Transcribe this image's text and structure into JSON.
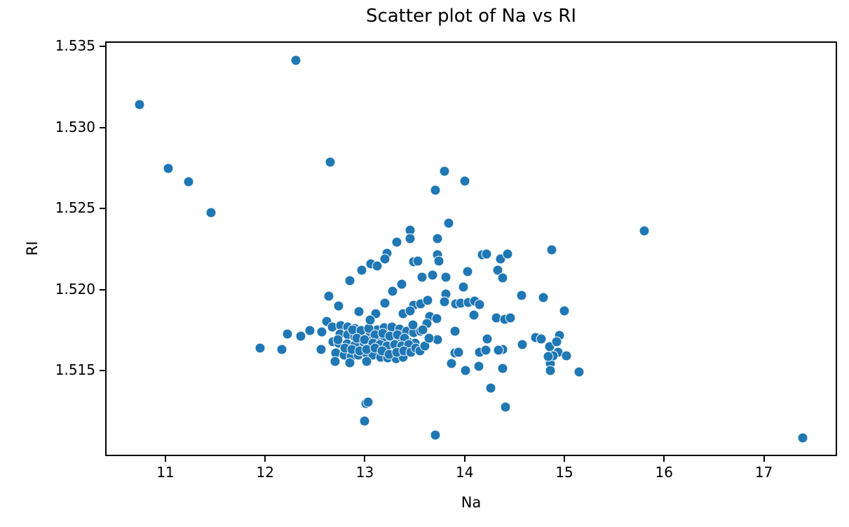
{
  "figure": {
    "title": "Scatter plot of Na vs RI",
    "xlabel": "Na",
    "ylabel": "RI"
  },
  "chart_data": {
    "type": "scatter",
    "title": "Scatter plot of Na vs RI",
    "xlabel": "Na",
    "ylabel": "RI",
    "xlim": [
      10.41,
      17.72
    ],
    "ylim": [
      1.50982,
      1.53523
    ],
    "grid": false,
    "legend": "none",
    "marker_color": "#1f77b4",
    "marker_edge_color": "#ffffff",
    "x_ticks": [
      11,
      12,
      13,
      14,
      15,
      16,
      17
    ],
    "x_tick_labels": [
      "11",
      "12",
      "13",
      "14",
      "15",
      "16",
      "17"
    ],
    "y_ticks": [
      1.515,
      1.52,
      1.525,
      1.53,
      1.535
    ],
    "y_tick_labels": [
      "1.515",
      "1.520",
      "1.525",
      "1.530",
      "1.535"
    ],
    "points": [
      [
        12.31,
        1.53415
      ],
      [
        10.74,
        1.53143
      ],
      [
        11.03,
        1.52747
      ],
      [
        11.23,
        1.52667
      ],
      [
        11.46,
        1.52474
      ],
      [
        12.65,
        1.52787
      ],
      [
        13.8,
        1.52732
      ],
      [
        14.0,
        1.52671
      ],
      [
        13.71,
        1.52615
      ],
      [
        13.84,
        1.52409
      ],
      [
        13.45,
        1.52367
      ],
      [
        13.45,
        1.52315
      ],
      [
        13.32,
        1.52292
      ],
      [
        13.73,
        1.52316
      ],
      [
        13.22,
        1.52226
      ],
      [
        13.2,
        1.5219
      ],
      [
        13.06,
        1.5216
      ],
      [
        13.12,
        1.52146
      ],
      [
        12.97,
        1.52122
      ],
      [
        13.49,
        1.52171
      ],
      [
        13.53,
        1.52177
      ],
      [
        13.73,
        1.52214
      ],
      [
        13.74,
        1.52175
      ],
      [
        14.18,
        1.52216
      ],
      [
        14.22,
        1.52221
      ],
      [
        14.36,
        1.52188
      ],
      [
        14.43,
        1.52219
      ],
      [
        14.87,
        1.52245
      ],
      [
        14.03,
        1.52113
      ],
      [
        14.33,
        1.5212
      ],
      [
        14.38,
        1.52071
      ],
      [
        13.57,
        1.52077
      ],
      [
        13.68,
        1.52091
      ],
      [
        13.81,
        1.52077
      ],
      [
        12.85,
        1.52054
      ],
      [
        12.64,
        1.51959
      ],
      [
        12.74,
        1.51899
      ],
      [
        12.22,
        1.51728
      ],
      [
        12.36,
        1.51713
      ],
      [
        12.45,
        1.51749
      ],
      [
        11.95,
        1.51641
      ],
      [
        12.17,
        1.51632
      ],
      [
        12.56,
        1.5163
      ],
      [
        12.62,
        1.51803
      ],
      [
        12.68,
        1.5168
      ],
      [
        13.37,
        1.52035
      ],
      [
        13.28,
        1.51992
      ],
      [
        13.2,
        1.51916
      ],
      [
        13.49,
        1.51904
      ],
      [
        13.56,
        1.51911
      ],
      [
        12.94,
        1.51866
      ],
      [
        13.11,
        1.51851
      ],
      [
        13.38,
        1.51853
      ],
      [
        13.45,
        1.51869
      ],
      [
        12.57,
        1.51741
      ],
      [
        12.67,
        1.51768
      ],
      [
        12.76,
        1.5178
      ],
      [
        12.83,
        1.51771
      ],
      [
        12.9,
        1.5176
      ],
      [
        12.75,
        1.51726
      ],
      [
        12.83,
        1.51721
      ],
      [
        12.9,
        1.51709
      ],
      [
        12.98,
        1.51723
      ],
      [
        13.05,
        1.51735
      ],
      [
        13.12,
        1.51752
      ],
      [
        13.19,
        1.51767
      ],
      [
        13.27,
        1.51772
      ],
      [
        13.35,
        1.51758
      ],
      [
        13.42,
        1.51745
      ],
      [
        13.49,
        1.51735
      ],
      [
        13.56,
        1.51745
      ],
      [
        12.98,
        1.51677
      ],
      [
        13.05,
        1.51683
      ],
      [
        13.13,
        1.51692
      ],
      [
        13.2,
        1.51697
      ],
      [
        13.28,
        1.51692
      ],
      [
        13.35,
        1.51683
      ],
      [
        13.43,
        1.51677
      ],
      [
        13.5,
        1.51669
      ],
      [
        12.74,
        1.51671
      ],
      [
        12.82,
        1.51666
      ],
      [
        12.9,
        1.51657
      ],
      [
        12.71,
        1.51608
      ],
      [
        12.79,
        1.51597
      ],
      [
        12.86,
        1.51588
      ],
      [
        12.93,
        1.51597
      ],
      [
        13.01,
        1.51608
      ],
      [
        13.08,
        1.51597
      ],
      [
        13.16,
        1.51585
      ],
      [
        13.23,
        1.51579
      ],
      [
        13.31,
        1.51574
      ],
      [
        13.38,
        1.51583
      ],
      [
        12.7,
        1.51559
      ],
      [
        12.85,
        1.5155
      ],
      [
        13.02,
        1.51559
      ],
      [
        13.99,
        1.52015
      ],
      [
        13.81,
        1.51973
      ],
      [
        13.8,
        1.51926
      ],
      [
        13.63,
        1.51933
      ],
      [
        13.91,
        1.51911
      ],
      [
        13.96,
        1.51917
      ],
      [
        14.04,
        1.51922
      ],
      [
        14.1,
        1.51928
      ],
      [
        14.15,
        1.51907
      ],
      [
        14.09,
        1.51842
      ],
      [
        13.65,
        1.51836
      ],
      [
        13.72,
        1.51821
      ],
      [
        13.62,
        1.51791
      ],
      [
        14.32,
        1.51828
      ],
      [
        14.4,
        1.51818
      ],
      [
        14.46,
        1.51824
      ],
      [
        13.9,
        1.51745
      ],
      [
        13.73,
        1.51694
      ],
      [
        14.23,
        1.51698
      ],
      [
        14.38,
        1.51633
      ],
      [
        14.34,
        1.51626
      ],
      [
        14.58,
        1.51662
      ],
      [
        14.71,
        1.51706
      ],
      [
        14.77,
        1.51698
      ],
      [
        14.85,
        1.51648
      ],
      [
        13.9,
        1.51608
      ],
      [
        13.94,
        1.51615
      ],
      [
        14.15,
        1.51615
      ],
      [
        14.21,
        1.51625
      ],
      [
        13.87,
        1.51543
      ],
      [
        14.14,
        1.51528
      ],
      [
        14.01,
        1.515
      ],
      [
        14.38,
        1.51514
      ],
      [
        14.85,
        1.51557
      ],
      [
        14.86,
        1.51543
      ],
      [
        14.26,
        1.51394
      ],
      [
        14.57,
        1.51966
      ],
      [
        14.79,
        1.51953
      ],
      [
        13.01,
        1.51296
      ],
      [
        13.03,
        1.51305
      ],
      [
        13.0,
        1.5119
      ],
      [
        13.71,
        1.51103
      ],
      [
        14.41,
        1.51275
      ],
      [
        14.86,
        1.515
      ],
      [
        15.8,
        1.52361
      ],
      [
        15.0,
        1.51871
      ],
      [
        14.95,
        1.51717
      ],
      [
        14.92,
        1.5168
      ],
      [
        14.94,
        1.51615
      ],
      [
        14.89,
        1.51594
      ],
      [
        15.02,
        1.51594
      ],
      [
        14.84,
        1.51587
      ],
      [
        15.15,
        1.51493
      ],
      [
        17.39,
        1.51086
      ],
      [
        12.88,
        1.51752
      ],
      [
        12.96,
        1.51747
      ],
      [
        13.04,
        1.51762
      ],
      [
        13.1,
        1.51722
      ],
      [
        13.18,
        1.51732
      ],
      [
        13.25,
        1.51712
      ],
      [
        13.33,
        1.51722
      ],
      [
        13.4,
        1.51702
      ],
      [
        12.92,
        1.51702
      ],
      [
        13.0,
        1.51692
      ],
      [
        13.08,
        1.51672
      ],
      [
        13.15,
        1.51662
      ],
      [
        13.22,
        1.51652
      ],
      [
        13.3,
        1.51662
      ],
      [
        13.37,
        1.51652
      ],
      [
        13.44,
        1.51662
      ],
      [
        12.8,
        1.51642
      ],
      [
        12.87,
        1.51632
      ],
      [
        12.95,
        1.51622
      ],
      [
        13.02,
        1.51632
      ],
      [
        13.1,
        1.51642
      ],
      [
        13.17,
        1.51622
      ],
      [
        13.24,
        1.51602
      ],
      [
        13.32,
        1.51612
      ],
      [
        13.39,
        1.51622
      ],
      [
        13.46,
        1.51612
      ],
      [
        13.51,
        1.51642
      ],
      [
        13.55,
        1.51622
      ],
      [
        13.6,
        1.51652
      ],
      [
        13.64,
        1.51702
      ],
      [
        13.58,
        1.51752
      ],
      [
        13.48,
        1.51782
      ],
      [
        12.73,
        1.51692
      ],
      [
        13.05,
        1.51812
      ]
    ]
  }
}
